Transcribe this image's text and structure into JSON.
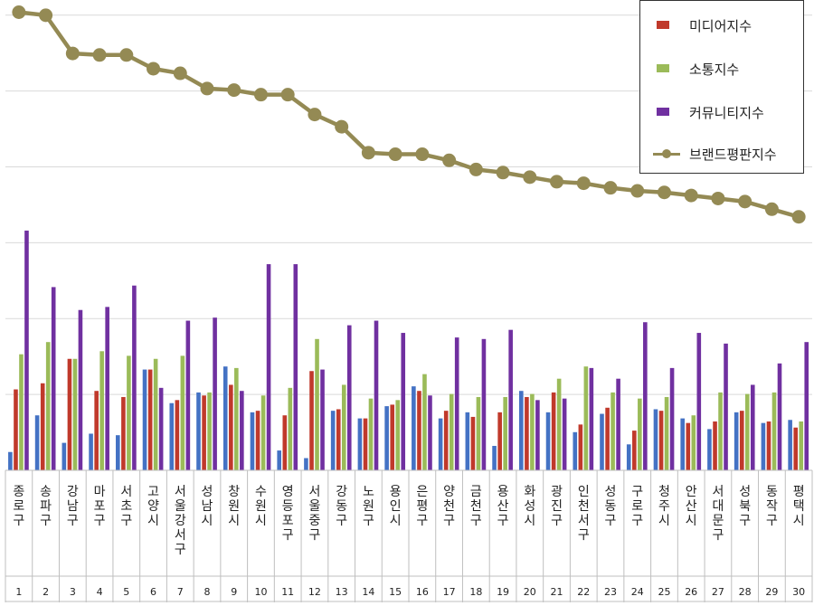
{
  "chart_data": {
    "type": "bar",
    "categories": [
      "종로구",
      "송파구",
      "강남구",
      "마포구",
      "서초구",
      "고양시",
      "서울 강서구",
      "성남시",
      "창원시",
      "수원시",
      "영등포구",
      "서울 중구",
      "강동구",
      "노원구",
      "용인시",
      "은평구",
      "양천구",
      "금천구",
      "용산구",
      "화성시",
      "광진구",
      "인천 서구",
      "성동구",
      "구로구",
      "청주시",
      "안산시",
      "서대문구",
      "성북구",
      "동작구",
      "평택시"
    ],
    "ranks": [
      "1",
      "2",
      "3",
      "4",
      "5",
      "6",
      "7",
      "8",
      "9",
      "10",
      "11",
      "12",
      "13",
      "14",
      "15",
      "16",
      "17",
      "18",
      "19",
      "20",
      "21",
      "22",
      "23",
      "24",
      "25",
      "26",
      "27",
      "28",
      "29",
      "30"
    ],
    "category_lines": [
      [
        "종",
        "로",
        "구"
      ],
      [
        "송",
        "파",
        "구"
      ],
      [
        "강",
        "남",
        "구"
      ],
      [
        "마",
        "포",
        "구"
      ],
      [
        "서",
        "초",
        "구"
      ],
      [
        "고",
        "양",
        "시"
      ],
      [
        "서",
        "울",
        "강",
        "서",
        "구"
      ],
      [
        "성",
        "남",
        "시"
      ],
      [
        "창",
        "원",
        "시"
      ],
      [
        "수",
        "원",
        "시"
      ],
      [
        "영",
        "등",
        "포",
        "구"
      ],
      [
        "서",
        "울",
        "중",
        "구"
      ],
      [
        "강",
        "동",
        "구"
      ],
      [
        "노",
        "원",
        "구"
      ],
      [
        "용",
        "인",
        "시"
      ],
      [
        "은",
        "평",
        "구"
      ],
      [
        "양",
        "천",
        "구"
      ],
      [
        "금",
        "천",
        "구"
      ],
      [
        "용",
        "산",
        "구"
      ],
      [
        "화",
        "성",
        "시"
      ],
      [
        "광",
        "진",
        "구"
      ],
      [
        "인",
        "천",
        "서",
        "구"
      ],
      [
        "성",
        "동",
        "구"
      ],
      [
        "구",
        "로",
        "구"
      ],
      [
        "청",
        "주",
        "시"
      ],
      [
        "안",
        "산",
        "시"
      ],
      [
        "서",
        "대",
        "문",
        "구"
      ],
      [
        "성",
        "북",
        "구"
      ],
      [
        "동",
        "작",
        "구"
      ],
      [
        "평",
        "택",
        "시"
      ]
    ],
    "series": [
      {
        "name": "",
        "kind": "bar",
        "color": "#4472C4",
        "values": [
          1.2,
          3.6,
          1.8,
          2.4,
          2.3,
          6.6,
          4.4,
          5.1,
          6.8,
          3.8,
          1.3,
          0.8,
          3.9,
          3.4,
          4.2,
          5.5,
          3.4,
          3.8,
          1.6,
          5.2,
          3.8,
          2.5,
          3.7,
          1.7,
          4.0,
          3.4,
          2.7,
          3.8,
          3.1,
          3.3
        ]
      },
      {
        "name": "미디어지수",
        "kind": "bar",
        "color": "#C0392B",
        "values": [
          5.3,
          5.7,
          7.3,
          5.2,
          4.8,
          6.6,
          4.6,
          4.9,
          5.6,
          3.9,
          3.6,
          6.5,
          4.0,
          3.4,
          4.3,
          5.2,
          3.9,
          3.5,
          3.8,
          4.8,
          5.1,
          3.0,
          4.1,
          2.6,
          3.9,
          3.1,
          3.2,
          3.9,
          3.2,
          2.8
        ]
      },
      {
        "name": "소통지수",
        "kind": "bar",
        "color": "#9BBB59",
        "values": [
          7.6,
          8.4,
          7.3,
          7.8,
          7.5,
          7.3,
          7.5,
          5.1,
          6.7,
          4.9,
          5.4,
          8.6,
          5.6,
          4.7,
          4.6,
          6.3,
          5.0,
          4.8,
          4.8,
          5.0,
          6.0,
          6.8,
          5.1,
          4.7,
          4.8,
          3.6,
          5.1,
          5.0,
          5.1,
          3.2
        ]
      },
      {
        "name": "커뮤니티지수",
        "kind": "bar",
        "color": "#7030A0",
        "values": [
          15.7,
          12.0,
          10.5,
          10.7,
          12.1,
          5.4,
          9.8,
          10.0,
          5.2,
          13.5,
          13.5,
          6.6,
          9.5,
          9.8,
          9.0,
          4.9,
          8.7,
          8.6,
          9.2,
          4.6,
          4.7,
          6.7,
          6.0,
          9.7,
          6.7,
          9.0,
          8.3,
          5.6,
          7.0,
          8.4
        ]
      },
      {
        "name": "브랜드평판지수",
        "kind": "line",
        "color": "#948A54",
        "values": [
          30.0,
          29.8,
          27.3,
          27.2,
          27.2,
          26.3,
          26.0,
          25.0,
          24.9,
          24.6,
          24.6,
          23.3,
          22.5,
          20.8,
          20.7,
          20.7,
          20.3,
          19.7,
          19.5,
          19.2,
          18.9,
          18.8,
          18.5,
          18.3,
          18.2,
          18.0,
          17.8,
          17.6,
          17.1,
          16.6
        ]
      }
    ],
    "ylim": [
      0,
      30.8
    ],
    "grid": true,
    "legend_position": "top-right",
    "title": "",
    "xlabel": "",
    "ylabel": ""
  },
  "legend": [
    {
      "label": "미디어지수",
      "kind": "bar",
      "color": "#C0392B"
    },
    {
      "label": "소통지수",
      "kind": "bar",
      "color": "#9BBB59"
    },
    {
      "label": "커뮤니티지수",
      "kind": "bar",
      "color": "#7030A0"
    },
    {
      "label": "브랜드평판지수",
      "kind": "line",
      "color": "#948A54"
    }
  ]
}
